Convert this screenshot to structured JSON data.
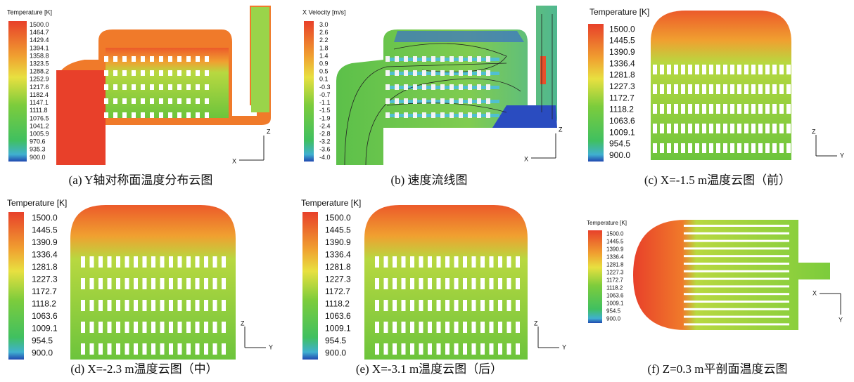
{
  "panels": [
    {
      "legend_title": "Temperature [K]",
      "legend_labels": [
        "1500.0",
        "1464.7",
        "1429.4",
        "1394.1",
        "1358.8",
        "1323.5",
        "1288.2",
        "1252.9",
        "1217.6",
        "1182.4",
        "1147.1",
        "1111.8",
        "1076.5",
        "1041.2",
        "1005.9",
        "970.6",
        "935.3",
        "900.0"
      ],
      "axes": [
        "Z",
        "X"
      ],
      "caption": "(a) Y轴对称面温度分布云图"
    },
    {
      "legend_title": "X Velocity [m/s]",
      "legend_labels": [
        "3.0",
        "2.6",
        "2.2",
        "1.8",
        "1.4",
        "0.9",
        "0.5",
        "0.1",
        "-0.3",
        "-0.7",
        "-1.1",
        "-1.5",
        "-1.9",
        "-2.4",
        "-2.8",
        "-3.2",
        "-3.6",
        "-4.0"
      ],
      "axes": [
        "Z",
        "X"
      ],
      "caption": "(b) 速度流线图"
    },
    {
      "legend_title": "Temperature [K]",
      "legend_labels": [
        "1500.0",
        "1445.5",
        "1390.9",
        "1336.4",
        "1281.8",
        "1227.3",
        "1172.7",
        "1118.2",
        "1063.6",
        "1009.1",
        "954.5",
        "900.0"
      ],
      "axes": [
        "Z",
        "Y"
      ],
      "caption": "(c) X=-1.5 m温度云图（前）"
    },
    {
      "legend_title": "Temperature [K]",
      "legend_labels": [
        "1500.0",
        "1445.5",
        "1390.9",
        "1336.4",
        "1281.8",
        "1227.3",
        "1172.7",
        "1118.2",
        "1063.6",
        "1009.1",
        "954.5",
        "900.0"
      ],
      "axes": [
        "Z",
        "Y"
      ],
      "caption": "(d) X=-2.3 m温度云图（中）"
    },
    {
      "legend_title": "Temperature [K]",
      "legend_labels": [
        "1500.0",
        "1445.5",
        "1390.9",
        "1336.4",
        "1281.8",
        "1227.3",
        "1172.7",
        "1118.2",
        "1063.6",
        "1009.1",
        "954.5",
        "900.0"
      ],
      "axes": [
        "Z",
        "Y"
      ],
      "caption": "(e) X=-3.1 m温度云图（后）"
    },
    {
      "legend_title": "Temperature [K]",
      "legend_labels": [
        "1500.0",
        "1445.5",
        "1390.9",
        "1336.4",
        "1281.8",
        "1227.3",
        "1172.7",
        "1118.2",
        "1063.6",
        "1009.1",
        "954.5",
        "900.0"
      ],
      "axes": [
        "X",
        "Y"
      ],
      "caption": "(f) Z=0.3 m平剖面温度云图"
    }
  ]
}
